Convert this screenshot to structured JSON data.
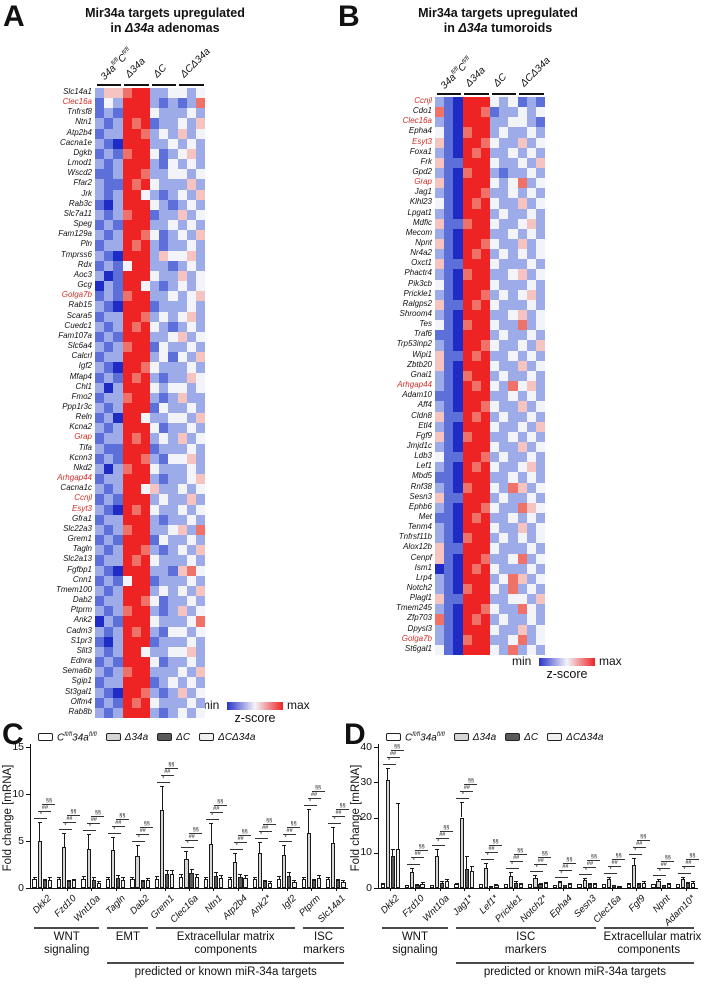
{
  "letters": {
    "A": "A",
    "B": "B",
    "C": "C",
    "D": "D"
  },
  "heatmap_palette": {
    "B": "#1f2bc5",
    "b": "#5d6fd8",
    "l": "#9dabe8",
    "w": "#f3f3fa",
    "p": "#f5c3c0",
    "r": "#ef7168",
    "R": "#ee2424"
  },
  "series_fills": [
    "#ffffff",
    "#d6d6d6",
    "#5a5a5a",
    "#f0f0f0"
  ],
  "highlight_gene_color": "#d03028",
  "col_headers": [
    [
      [
        "34a",
        "i"
      ],
      [
        "fl/fl",
        "s"
      ],
      [
        "C",
        "i"
      ],
      [
        "fl/fl",
        "s"
      ]
    ],
    [
      [
        "Δ34a",
        "i"
      ]
    ],
    [
      [
        "ΔC",
        "i"
      ]
    ],
    [
      [
        "ΔCΔ34a",
        "i"
      ]
    ]
  ],
  "legend_series": [
    [
      [
        "C",
        "i"
      ],
      [
        "fl/fl",
        "s"
      ],
      [
        "34a",
        "i"
      ],
      [
        "fl/fl",
        "s"
      ]
    ],
    [
      [
        "Δ34a",
        "i"
      ]
    ],
    [
      [
        "ΔC",
        "i"
      ]
    ],
    [
      [
        "ΔCΔ34a",
        "i"
      ]
    ]
  ],
  "legendA": {
    "min": "min",
    "max": "max",
    "zscore": "z-score"
  },
  "legendB": {
    "min": "min",
    "max": "max",
    "zscore": "z-score"
  },
  "chart_data": [
    {
      "id": "A",
      "type": "heatmap",
      "title_line1": "Mir34a targets upregulated",
      "title_line2_segments": [
        [
          "in ",
          "n"
        ],
        [
          "Δ34a",
          "i"
        ],
        [
          " adenomas",
          "n"
        ]
      ],
      "columns": [
        "34a fl/fl C fl/fl",
        "Δ34a",
        "ΔC",
        "ΔCΔ34a"
      ],
      "cols_per_group": 3,
      "legend": {
        "min": "min",
        "max": "max",
        "label": "z-score"
      },
      "rows": [
        "Slc14a1|0|lpprRRllwwlw",
        "Clec16a|1|bwlRRRlblblr",
        "Tnfrsf8|0|blbRRRwlllwl",
        "Ntn1|0|lblRrRbllwlp",
        "Atp2b4|0|bllRRrlwlplw",
        "Cacna1e|0|lbBRRRllwlwl",
        "Dgkb|0|blbrRRwblwpl",
        "Lmod1|0|lblRRRlbwlwl",
        "Wscd2|0|bblRRrllwwlw",
        "Ffar2|0|lbbRrRwlllpl",
        "Jrk|0|lblRRwlblwlp",
        "Rab3c|0|bBlRRRwlblwl",
        "Slc7a11|0|lblrRRbllplw",
        "Speg|0|blbRRRllwlwl",
        "Fam129a|0|lblRRrwblwlp",
        "Pln|0|bllRrRlbllwl",
        "Tmprss6|0|lbBRRRlpwwpl",
        "Rdx|0|blbwRRllblwl",
        "Aoc3|0|lBbRRRwllplw",
        "Gcg|0|BlbRRwlblwlw",
        "Golga7b|1|blbrRRllwlwp",
        "Rab15|0|lbBRRRblllwl",
        "Scara5|0|bllRRrlwlwpl",
        "Cuedc1|0|lblRrRwlblwl",
        "Fam107a|0|blbRRRllwplw",
        "Slc6a4|0|lblrRRbwllwl",
        "Calcrl|0|bllRRRlwbwlp",
        "Igf2|0|lbBRRrwlllwl",
        "Mfap4|0|blbRrRlbllpw",
        "Chl1|0|lBlRRRwlwwlw",
        "Fmo2|0|bllrRRlblpll",
        "Ppp1r3c|0|lblRRRbwllwl",
        "Reln|0|blBRRwllwwlp",
        "Kcna2|0|lblRRRwbllwl",
        "Grap|1|bllRrRlwlplw",
        "Tifa|0|lbbRRRblllwl",
        "Kcnn3|0|blbRRrlbwwpl",
        "Nkd2|0|lBlrRRwlllwl",
        "Arhgap44|1|bllRRRlbllwp",
        "Cacna1c|0|lblRRwpllwlw",
        "Ccnjl|1|blbRRRlwllpl",
        "Esyt3|1|lbBRrRwllwlw",
        "Gfra1|0|bllRRRlbllwl",
        "Slc22a3|0|lblrRRllwplr",
        "Grem1|0|blbRRRbwllwl",
        "Tagln|0|lblRRrlblwlp",
        "Slc2a13|0|bllRrRwlllwl",
        "Fgfbp1|0|lbBRRRllbprw",
        "Cnn1|0|blbwRRblllwl",
        "Tmem100|0|lblRRRlwlwlp",
        "Dab2|0|bllRRrwbllwl",
        "Ptprm|0|lblrRRlblplw",
        "Ank2|0|BlbRRRwlllwr",
        "Cadm3|0|lblRrRlbwwlw",
        "S1pr3|0|bBlRRRblllwl",
        "Slit3|0|lblRRwllwwpl",
        "Ednra|0|blbRRRwbllwl",
        "Sema6b|0|lblrRRlllwlp",
        "Sgip1|0|bllRRRblwlwl",
        "St3gal1|0|lbBRRrlblplw",
        "Olfm4|0|blbRrRwlllwl",
        "Rab8b|0|lblRRRlblwlw"
      ]
    },
    {
      "id": "B",
      "type": "heatmap",
      "title_line1": "Mir34a targets upregulated",
      "title_line2_segments": [
        [
          "in ",
          "n"
        ],
        [
          "Δ34a",
          "i"
        ],
        [
          " tumoroids",
          "n"
        ]
      ],
      "columns": [
        "34a fl/fl C fl/fl",
        "Δ34a",
        "ΔC",
        "ΔCΔ34a"
      ],
      "cols_per_group": 3,
      "legend": {
        "min": "min",
        "max": "max",
        "label": "z-score"
      },
      "rows": [
        "Ccnjl|1|lbBRRRwlwblb",
        "Cdo1|0|rbBRRrbllwlw",
        "Clec16a|1|lbBRRRllwwlb",
        "Epha4|0|wbBrRRlwllwl",
        "Esyt3|1|pbBRRrwllplw",
        "Foxa1|0|lbBRrRllwlwl",
        "Frk|0|pbbRRRwllwlp",
        "Gpd2|0|lbBrRRlbllwl",
        "Grap|1|pbBRRRwlwrlw",
        "Jag1|0|lbBRRrllwlwl",
        "Klhl23|0|wbBRrRwllplw",
        "Lpgat1|0|lbBRRRlwllwl",
        "Mdfic|0|pbbrRRwllwpl",
        "Mecom|0|lbBRRRllwlwl",
        "Npnt|0|pbBRRrwllplw",
        "Nr4a2|0|lbBRrRlwlwlw",
        "Oxct1|0|pbbRRRwlllwl",
        "Phactr4|0|lbBrRRllwplw",
        "Pik3cb|0|wbBRRRwlllwl",
        "Prickle1|0|lbBRRrlwlwpl",
        "Ralgps2|0|pbbRrRwlllwl",
        "Shroom4|0|lbBRRRllwplw",
        "Tes|0|wbBrRRwllrlw",
        "Traf6|0|bbBRRRlwllwl",
        "Trp53inp2|0|lbBRRrwllwlp",
        "Wipi1|0|pbbRrRllwlwl",
        "Zbtb20|0|pbBRRRwllplw",
        "Gnai1|0|lbBrRRlwllwl",
        "Arhgap44|1|lbBRrRwlrwpl",
        "Adam10|0|bbBRRRllwlwl",
        "Aff4|0|lbBRRrwllplw",
        "Cldn8|0|pbbRrRlwllwl",
        "Etl4|0|lbBRRRwllwlp",
        "Fgf9|0|pbBrRRllwlwl",
        "Jmjd1c|0|lbBRRRwllplw",
        "Ldb3|0|wbbRRrlwllwl",
        "Lef1|0|lbBRrRwllwpl",
        "Mbd5|0|bbBRRRllwlwl",
        "Rnf38|0|lbBrRRwlrplw",
        "Sesn3|0|pbbRRRlwllwl",
        "Ephb6|0|lbBRRrwllrpw",
        "Met|0|bbBRrRllwlwl",
        "Tenm4|0|lbBRRRwllplw",
        "Tnfrsf11b|0|lbBrRRlwlwlw",
        "Alox12b|0|pbbRRRwlllwl",
        "Cenpf|0|pbBRRrllwrlw",
        "Ism1|0|BbBRrRwlllwl",
        "Lrp4|0|lbBRRRlwrplw",
        "Notch2|0|lbBrRRwlrlwl",
        "Plagl1|0|pbbRRRllwwlp",
        "Tmem245|0|lbBRRrwllrwl",
        "Zfp703|0|rbBRrRlwllwl",
        "Dpysl3|0|lbBRRRwllplw",
        "Golga7b|1|lbBrRRllwrlw",
        "St6gal1|0|wbBRRRwlrlwl"
      ]
    },
    {
      "id": "C",
      "type": "bar",
      "ylabel": "Fold change [mRNA]",
      "ylim": [
        0,
        15
      ],
      "yticks": [
        0,
        5,
        10,
        15
      ],
      "series": [
        "C fl/fl 34a fl/fl",
        "Δ34a",
        "ΔC",
        "ΔCΔ34a"
      ],
      "categories": [
        "Dkk2",
        "Fzd10",
        "Wnt10a",
        "Tagln",
        "Dab2",
        "Grem1",
        "Clec16a",
        "Ntn1",
        "Atp2b4",
        "Ank2*",
        "Igf2",
        "Ptprm",
        "Slc14a1"
      ],
      "values": [
        [
          1,
          5,
          0.8,
          0.9
        ],
        [
          1,
          4.4,
          0.7,
          0.8
        ],
        [
          1,
          4.2,
          0.9,
          0.5
        ],
        [
          1,
          4,
          1.1,
          0.9
        ],
        [
          1,
          3.4,
          0.7,
          0.9
        ],
        [
          1,
          8.3,
          1.5,
          1.5
        ],
        [
          1.2,
          3.1,
          1.6,
          1.2
        ],
        [
          1,
          4.7,
          1.3,
          1.1
        ],
        [
          1,
          2.8,
          1.2,
          1.1
        ],
        [
          1,
          3.7,
          0.7,
          0.5
        ],
        [
          1,
          3.5,
          1.3,
          0.6
        ],
        [
          1,
          5.8,
          0.8,
          1.1
        ],
        [
          1,
          4.8,
          0.8,
          0.6
        ]
      ],
      "errors": [
        [
          0.2,
          2,
          0.2,
          0.3
        ],
        [
          0.2,
          1.5,
          0.2,
          0.2
        ],
        [
          0.3,
          1.5,
          0.3,
          0.2
        ],
        [
          0.2,
          1.4,
          0.3,
          0.3
        ],
        [
          0.2,
          1.2,
          0.2,
          0.2
        ],
        [
          0.3,
          2.5,
          0.4,
          0.4
        ],
        [
          0.3,
          0.8,
          0.4,
          0.3
        ],
        [
          0.2,
          2.2,
          0.4,
          0.3
        ],
        [
          0.2,
          0.9,
          0.3,
          0.3
        ],
        [
          0.2,
          1.2,
          0.2,
          0.2
        ],
        [
          0.3,
          1.1,
          0.4,
          0.2
        ],
        [
          0.2,
          2.6,
          0.2,
          0.3
        ],
        [
          0.2,
          1.7,
          0.2,
          0.2
        ]
      ],
      "sig_symbols": [
        "*",
        "##",
        "§§"
      ],
      "groups": [
        {
          "label_lines": [
            "WNT",
            "signaling"
          ],
          "from": 0,
          "to": 2
        },
        {
          "label_lines": [
            "EMT"
          ],
          "from": 3,
          "to": 4
        },
        {
          "label_lines": [
            "Extracellular matrix",
            "components"
          ],
          "from": 5,
          "to": 10
        },
        {
          "label_lines": [
            "ISC",
            "markers"
          ],
          "from": 11,
          "to": 12
        }
      ],
      "span_group": {
        "label": "predicted or known miR-34a targets",
        "from": 3,
        "to": 12
      }
    },
    {
      "id": "D",
      "type": "bar",
      "ylabel": "Fold change [mRNA]",
      "ylim": [
        0,
        40
      ],
      "yticks": [
        0,
        10,
        20,
        30,
        40
      ],
      "series": [
        "C fl/fl 34a fl/fl",
        "Δ34a",
        "ΔC",
        "ΔCΔ34a"
      ],
      "categories": [
        "Dkk2",
        "Fzd10",
        "Wnt10a",
        "Jag1*",
        "Lef1*",
        "Prickle1",
        "Notch2*",
        "Epha4",
        "Sesn3",
        "Clec16a",
        "Fgf9",
        "Npnt",
        "Adam10*"
      ],
      "values": [
        [
          1,
          30.5,
          9,
          11
        ],
        [
          0.8,
          4.5,
          0.8,
          1.2
        ],
        [
          0.8,
          9,
          1.5,
          2
        ],
        [
          1,
          20,
          5.5,
          4.8
        ],
        [
          1,
          5.7,
          0.5,
          0.8
        ],
        [
          1,
          3.5,
          1.5,
          1
        ],
        [
          1,
          2.8,
          1.2,
          1.3
        ],
        [
          0.8,
          1.6,
          0.8,
          1
        ],
        [
          1,
          2.2,
          1,
          1.2
        ],
        [
          1,
          2.5,
          0.8,
          0.7
        ],
        [
          1,
          6.5,
          1,
          1.5
        ],
        [
          1,
          2,
          0.8,
          1
        ],
        [
          1,
          2.5,
          1.3,
          1.5
        ]
      ],
      "errors": [
        [
          0.3,
          3.5,
          2,
          13
        ],
        [
          0.2,
          1.2,
          0.3,
          0.4
        ],
        [
          0.2,
          2,
          0.4,
          0.5
        ],
        [
          0.3,
          4.5,
          3.5,
          1.5
        ],
        [
          0.2,
          1.5,
          0.2,
          0.3
        ],
        [
          0.2,
          1,
          0.4,
          0.3
        ],
        [
          0.2,
          0.8,
          0.3,
          0.4
        ],
        [
          0.2,
          0.5,
          0.2,
          0.3
        ],
        [
          0.2,
          0.6,
          0.3,
          0.3
        ],
        [
          0.2,
          0.7,
          0.2,
          0.2
        ],
        [
          0.3,
          2,
          0.3,
          0.4
        ],
        [
          0.2,
          0.6,
          0.2,
          0.3
        ],
        [
          0.2,
          0.7,
          0.3,
          0.4
        ]
      ],
      "sig_symbols": [
        "*",
        "##",
        "§§"
      ],
      "groups": [
        {
          "label_lines": [
            "WNT",
            "signaling"
          ],
          "from": 0,
          "to": 2
        },
        {
          "label_lines": [
            "ISC",
            "markers"
          ],
          "from": 3,
          "to": 8
        },
        {
          "label_lines": [
            "Extracellular matrix",
            "components"
          ],
          "from": 9,
          "to": 12
        }
      ],
      "span_group": {
        "label": "predicted or known miR-34a targets",
        "from": 3,
        "to": 12
      }
    }
  ]
}
